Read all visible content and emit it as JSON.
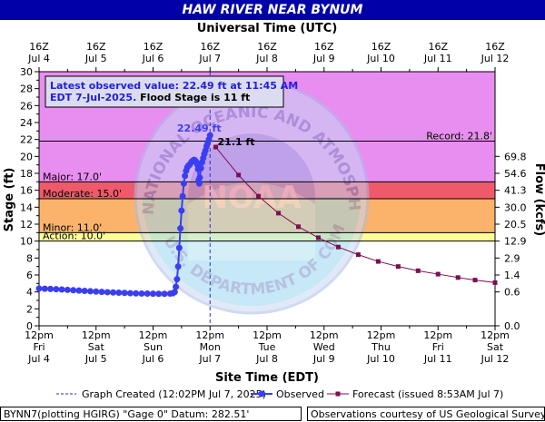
{
  "title": "HAW RIVER NEAR BYNUM",
  "top_axis_title": "Universal Time (UTC)",
  "bottom_axis_title": "Site Time (EDT)",
  "top_ticks": [
    {
      "t": 0,
      "a": "16Z",
      "b": "Jul 4"
    },
    {
      "t": 1,
      "a": "16Z",
      "b": "Jul 5"
    },
    {
      "t": 2,
      "a": "16Z",
      "b": "Jul 6"
    },
    {
      "t": 3,
      "a": "16Z",
      "b": "Jul 7"
    },
    {
      "t": 4,
      "a": "16Z",
      "b": "Jul 8"
    },
    {
      "t": 5,
      "a": "16Z",
      "b": "Jul 9"
    },
    {
      "t": 6,
      "a": "16Z",
      "b": "Jul 10"
    },
    {
      "t": 7,
      "a": "16Z",
      "b": "Jul 11"
    },
    {
      "t": 8,
      "a": "16Z",
      "b": "Jul 12"
    }
  ],
  "bottom_ticks": [
    {
      "t": 0,
      "a": "12pm",
      "b": "Fri",
      "c": "Jul 4"
    },
    {
      "t": 1,
      "a": "12pm",
      "b": "Sat",
      "c": "Jul 5"
    },
    {
      "t": 2,
      "a": "12pm",
      "b": "Sun",
      "c": "Jul 6"
    },
    {
      "t": 3,
      "a": "12pm",
      "b": "Mon",
      "c": "Jul 7"
    },
    {
      "t": 4,
      "a": "12pm",
      "b": "Tue",
      "c": "Jul 8"
    },
    {
      "t": 5,
      "a": "12pm",
      "b": "Wed",
      "c": "Jul 9"
    },
    {
      "t": 6,
      "a": "12pm",
      "b": "Thu",
      "c": "Jul 10"
    },
    {
      "t": 7,
      "a": "12pm",
      "b": "Fri",
      "c": "Jul 11"
    },
    {
      "t": 8,
      "a": "12pm",
      "b": "Sat",
      "c": "Jul 12"
    }
  ],
  "info_box": {
    "line1": "Latest observed value: 22.49 ft at 11:45 AM",
    "line2_date": "EDT 7-Jul-2025.",
    "line2_flood": "Flood Stage is 11 ft"
  },
  "legend": {
    "graph_created": "Graph Created (12:02PM Jul 7, 2025)",
    "observed": "Observed",
    "forecast": "Forecast (issued 8:53AM Jul 7)"
  },
  "footer": {
    "left": "BYNN7(plotting HGIRG) \"Gage 0\" Datum: 282.51'",
    "right": "Observations courtesy of US Geological Survey"
  },
  "watermark": {
    "arc_text": "NATIONAL OCEANIC AND ATMOSPHERIC ADMINISTRATION",
    "center_text": "NOAA",
    "bottom_text": "U.S. DEPARTMENT OF COMMERCE"
  },
  "colors": {
    "record_band": "#e88ef0",
    "major_band": "#ee5a6a",
    "moderate_band": "#fbb36b",
    "minor_band": "#ffff99",
    "observed": "#3a3ef2",
    "forecast": "#7a1050",
    "title_bg": "#0000a8"
  },
  "chart_data": {
    "type": "line",
    "title": "HAW RIVER NEAR BYNUM",
    "xlabel": "Site Time (EDT)",
    "ylabel": "Stage (ft)",
    "y2label": "Flow (kcfs)",
    "ylim": [
      0,
      30
    ],
    "y_ticks": [
      0,
      2,
      4,
      6,
      8,
      10,
      12,
      14,
      16,
      18,
      20,
      22,
      24,
      26,
      28,
      30
    ],
    "x_range": [
      "Jul 4 12pm",
      "Jul 12 12pm"
    ],
    "xlim_days_from_jul4_noon": [
      0,
      8
    ],
    "grid": false,
    "flow_ticks": [
      {
        "stage": 4.0,
        "label": "0.6"
      },
      {
        "stage": 6.0,
        "label": "1.4"
      },
      {
        "stage": 8.0,
        "label": "2.9"
      },
      {
        "stage": 10.0,
        "label": "12.9"
      },
      {
        "stage": 12.0,
        "label": "20.5"
      },
      {
        "stage": 14.0,
        "label": "30.0"
      },
      {
        "stage": 16.0,
        "label": "41.3"
      },
      {
        "stage": 18.0,
        "label": "54.6"
      },
      {
        "stage": 20.0,
        "label": "69.8"
      }
    ],
    "flow_zero_label": "0.0",
    "thresholds": [
      {
        "name": "Record",
        "label": "Record: 21.8'",
        "value": 21.8
      },
      {
        "name": "Major",
        "label": "Major: 17.0'",
        "value": 17.0
      },
      {
        "name": "Moderate",
        "label": "Moderate: 15.0'",
        "value": 15.0
      },
      {
        "name": "Minor",
        "label": "Minor: 11.0'",
        "value": 11.0
      },
      {
        "name": "Action",
        "label": "Action: 10.0'",
        "value": 10.0
      }
    ],
    "graph_created_t": 3.0,
    "observed_peak_label": "22.49 ft",
    "forecast_first_label": "21.1 ft",
    "series": [
      {
        "name": "Observed",
        "points": [
          [
            0.0,
            4.4
          ],
          [
            0.1,
            4.38
          ],
          [
            0.2,
            4.35
          ],
          [
            0.3,
            4.32
          ],
          [
            0.4,
            4.28
          ],
          [
            0.5,
            4.24
          ],
          [
            0.6,
            4.2
          ],
          [
            0.7,
            4.16
          ],
          [
            0.8,
            4.12
          ],
          [
            0.9,
            4.08
          ],
          [
            1.0,
            4.04
          ],
          [
            1.1,
            4.0
          ],
          [
            1.2,
            3.97
          ],
          [
            1.3,
            3.94
          ],
          [
            1.4,
            3.91
          ],
          [
            1.5,
            3.88
          ],
          [
            1.6,
            3.85
          ],
          [
            1.7,
            3.83
          ],
          [
            1.8,
            3.81
          ],
          [
            1.9,
            3.8
          ],
          [
            2.0,
            3.79
          ],
          [
            2.1,
            3.78
          ],
          [
            2.2,
            3.78
          ],
          [
            2.3,
            3.8
          ],
          [
            2.35,
            3.85
          ],
          [
            2.38,
            4.0
          ],
          [
            2.4,
            4.6
          ],
          [
            2.42,
            5.5
          ],
          [
            2.44,
            7.0
          ],
          [
            2.46,
            9.2
          ],
          [
            2.48,
            11.5
          ],
          [
            2.5,
            13.6
          ],
          [
            2.52,
            15.3
          ],
          [
            2.54,
            16.8
          ],
          [
            2.56,
            17.7
          ],
          [
            2.58,
            18.3
          ],
          [
            2.6,
            18.7
          ],
          [
            2.62,
            18.9
          ],
          [
            2.64,
            19.0
          ],
          [
            2.66,
            19.2
          ],
          [
            2.68,
            19.4
          ],
          [
            2.7,
            19.5
          ],
          [
            2.72,
            19.6
          ],
          [
            2.74,
            19.5
          ],
          [
            2.76,
            19.3
          ],
          [
            2.78,
            19.0
          ],
          [
            2.79,
            18.5
          ],
          [
            2.8,
            17.2
          ],
          [
            2.81,
            16.8
          ],
          [
            2.82,
            17.5
          ],
          [
            2.84,
            18.6
          ],
          [
            2.86,
            19.3
          ],
          [
            2.88,
            19.8
          ],
          [
            2.9,
            20.3
          ],
          [
            2.92,
            20.7
          ],
          [
            2.94,
            21.2
          ],
          [
            2.96,
            21.6
          ],
          [
            2.98,
            22.0
          ],
          [
            3.0,
            22.49
          ]
        ]
      },
      {
        "name": "Forecast",
        "points": [
          [
            3.1,
            21.1
          ],
          [
            3.5,
            17.8
          ],
          [
            3.85,
            15.3
          ],
          [
            4.2,
            13.3
          ],
          [
            4.55,
            11.7
          ],
          [
            4.9,
            10.4
          ],
          [
            5.25,
            9.3
          ],
          [
            5.6,
            8.4
          ],
          [
            5.95,
            7.6
          ],
          [
            6.3,
            7.0
          ],
          [
            6.65,
            6.5
          ],
          [
            7.0,
            6.1
          ],
          [
            7.35,
            5.7
          ],
          [
            7.65,
            5.4
          ],
          [
            8.0,
            5.1
          ]
        ]
      }
    ]
  }
}
